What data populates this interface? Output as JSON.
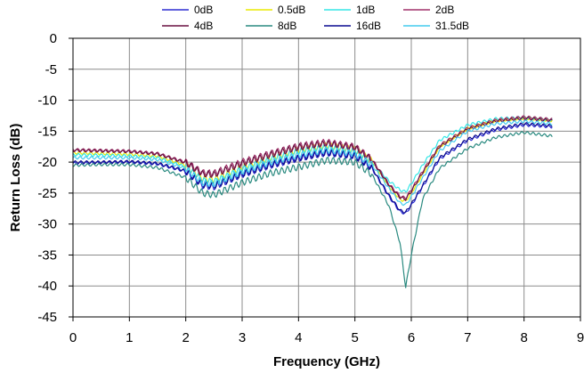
{
  "chart_data": {
    "type": "line",
    "title": "",
    "xlabel": "Frequency (GHz)",
    "ylabel": "Return Loss (dB)",
    "xlim": [
      0,
      9
    ],
    "ylim": [
      -45,
      0
    ],
    "x_ticks": [
      "0",
      "1",
      "2",
      "3",
      "4",
      "5",
      "6",
      "7",
      "8",
      "9"
    ],
    "y_ticks": [
      "0",
      "-5",
      "-10",
      "-15",
      "-20",
      "-25",
      "-30",
      "-35",
      "-40",
      "-45"
    ],
    "grid": true,
    "legend_position": "top",
    "x": [
      0.0,
      0.5,
      1.0,
      1.5,
      2.0,
      2.3,
      2.5,
      3.0,
      3.5,
      4.0,
      4.5,
      5.0,
      5.3,
      5.6,
      5.8,
      5.9,
      6.0,
      6.2,
      6.5,
      7.0,
      7.5,
      8.0,
      8.5
    ],
    "series": [
      {
        "name": "0dB",
        "color": "#2d2dd2",
        "values": [
          -20.2,
          -20.1,
          -20.0,
          -20.3,
          -21.5,
          -23.8,
          -24.0,
          -22.0,
          -20.5,
          -19.4,
          -18.5,
          -19.0,
          -21.0,
          -25.5,
          -28.0,
          -28.3,
          -27.0,
          -24.0,
          -19.5,
          -16.5,
          -14.8,
          -14.0,
          -14.3
        ]
      },
      {
        "name": "0.5dB",
        "color": "#eaea00",
        "values": [
          -18.5,
          -18.6,
          -18.7,
          -19.0,
          -20.5,
          -22.6,
          -22.8,
          -20.8,
          -19.3,
          -18.0,
          -17.3,
          -18.0,
          -19.8,
          -23.8,
          -26.0,
          -26.3,
          -25.0,
          -22.0,
          -17.5,
          -14.6,
          -13.3,
          -12.9,
          -13.3
        ]
      },
      {
        "name": "1dB",
        "color": "#33e6e6",
        "values": [
          -18.8,
          -18.9,
          -19.0,
          -19.3,
          -20.8,
          -23.0,
          -23.2,
          -21.2,
          -19.6,
          -18.3,
          -17.6,
          -18.3,
          -20.0,
          -23.0,
          -24.5,
          -24.8,
          -23.5,
          -20.5,
          -16.5,
          -14.0,
          -13.0,
          -12.8,
          -13.2
        ]
      },
      {
        "name": "2dB",
        "color": "#a0306a",
        "values": [
          -18.0,
          -18.1,
          -18.2,
          -18.6,
          -20.0,
          -21.7,
          -21.8,
          -20.0,
          -18.6,
          -17.4,
          -16.8,
          -17.5,
          -19.5,
          -23.5,
          -25.5,
          -25.8,
          -24.5,
          -21.5,
          -17.3,
          -14.5,
          -13.2,
          -12.7,
          -13.1
        ]
      },
      {
        "name": "4dB",
        "color": "#6a1040",
        "values": [
          -18.1,
          -18.2,
          -18.3,
          -18.7,
          -20.1,
          -21.9,
          -22.0,
          -20.2,
          -18.8,
          -17.6,
          -17.0,
          -17.7,
          -19.7,
          -23.7,
          -25.7,
          -26.0,
          -24.7,
          -21.7,
          -17.5,
          -14.7,
          -13.4,
          -12.9,
          -13.3
        ]
      },
      {
        "name": "8dB",
        "color": "#2a8a80",
        "values": [
          -20.5,
          -20.4,
          -20.4,
          -20.9,
          -22.5,
          -25.0,
          -25.3,
          -23.3,
          -21.8,
          -20.8,
          -19.7,
          -20.0,
          -22.0,
          -27.0,
          -33.0,
          -40.2,
          -35.0,
          -26.0,
          -21.0,
          -17.8,
          -16.0,
          -15.2,
          -15.8
        ]
      },
      {
        "name": "16dB",
        "color": "#0a0a90",
        "values": [
          -20.0,
          -20.0,
          -19.9,
          -20.2,
          -21.4,
          -23.6,
          -23.8,
          -21.9,
          -20.4,
          -19.3,
          -18.4,
          -18.9,
          -20.9,
          -25.3,
          -27.8,
          -28.1,
          -26.8,
          -23.8,
          -19.3,
          -16.3,
          -14.6,
          -13.8,
          -14.1
        ]
      },
      {
        "name": "31.5dB",
        "color": "#44ccee",
        "values": [
          -19.3,
          -19.3,
          -19.3,
          -19.6,
          -21.0,
          -23.3,
          -23.5,
          -21.5,
          -20.0,
          -18.8,
          -18.0,
          -18.6,
          -20.4,
          -24.2,
          -26.6,
          -26.9,
          -25.6,
          -22.6,
          -18.2,
          -15.0,
          -13.8,
          -13.4,
          -13.8
        ]
      }
    ]
  }
}
